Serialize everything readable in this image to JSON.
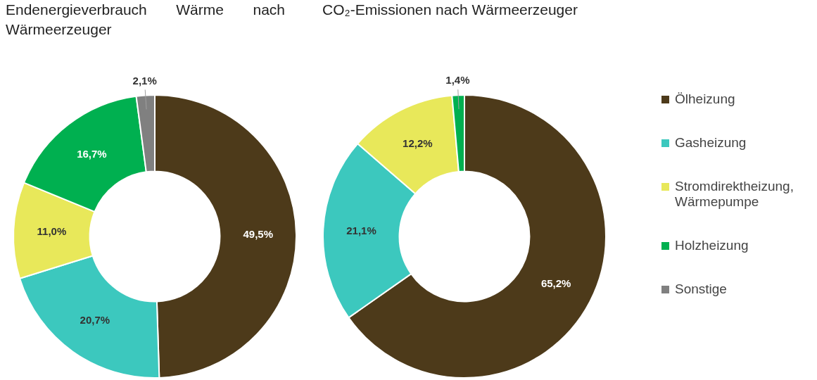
{
  "chart_data": [
    {
      "type": "donut",
      "title": "Endenergieverbrauch Wärme nach Wärmeerzeuger",
      "categories": [
        null,
        null,
        null,
        null,
        null
      ],
      "values": [
        49.5,
        20.7,
        11.0,
        16.7,
        2.1
      ],
      "value_labels": [
        "49,5%",
        "20,7%",
        "11,0%",
        "16,7%",
        "2,1%"
      ],
      "colors": [
        "#4d3a1a",
        "#3cc8be",
        "#e8e85a",
        "#00b050",
        "#808080"
      ]
    },
    {
      "type": "donut",
      "title": "CO₂-Emissionen nach Wärmeerzeuger",
      "categories": [
        "Ölheizung",
        "Gasheizung",
        "Stromdirektheizung, Wärmepumpe",
        "Holzheizung",
        "Sonstige"
      ],
      "values": [
        65.2,
        21.1,
        12.2,
        1.4,
        null
      ],
      "value_labels": [
        "65,2%",
        "21,1%",
        "12,2%",
        "1,4%",
        null
      ],
      "colors": [
        "#4d3a1a",
        "#3cc8be",
        "#e8e85a",
        "#00b050",
        "#808080"
      ],
      "legend": "right"
    }
  ]
}
